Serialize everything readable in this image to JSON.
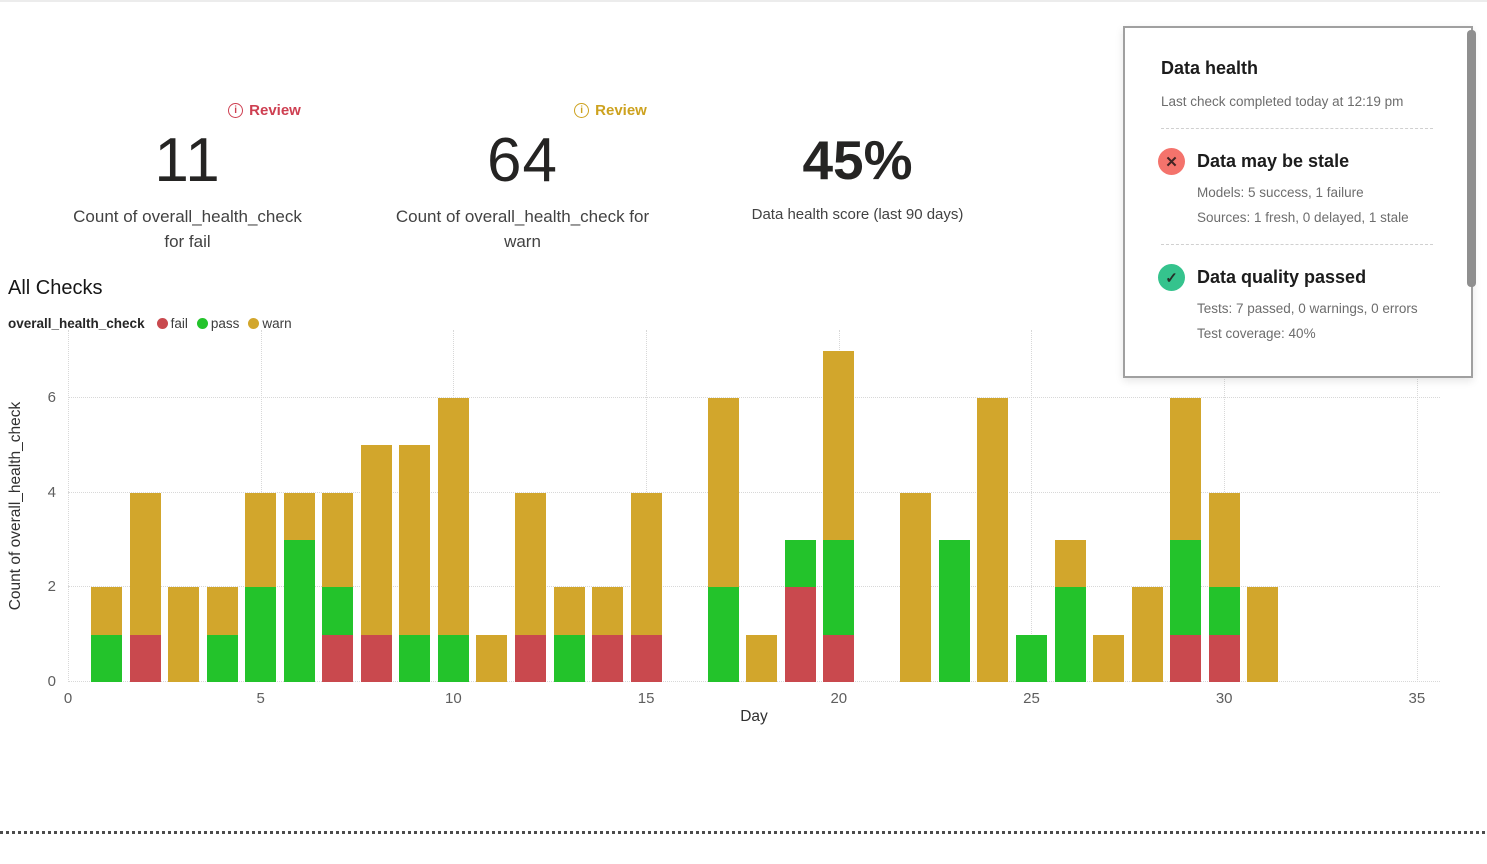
{
  "metrics": [
    {
      "badge": {
        "label": "Review",
        "color": "#ce3f51"
      },
      "value": "11",
      "label": "Count of overall_health_check for fail"
    },
    {
      "badge": {
        "label": "Review",
        "color": "#cda21f"
      },
      "value": "64",
      "label": "Count of overall_health_check for warn"
    },
    {
      "value": "45%",
      "label": "Data health score (last 90 days)"
    }
  ],
  "chart_data": {
    "type": "bar",
    "stacked": true,
    "title": "All Checks",
    "legend_title": "overall_health_check",
    "xlabel": "Day",
    "ylabel": "Count of overall_health_check",
    "x": [
      1,
      2,
      3,
      4,
      5,
      6,
      7,
      8,
      9,
      10,
      11,
      12,
      13,
      14,
      15,
      16,
      17,
      18,
      19,
      20,
      21,
      22,
      23,
      24,
      25,
      26,
      27,
      28,
      29,
      30,
      31
    ],
    "series": [
      {
        "name": "fail",
        "color": "#c9494e",
        "values": [
          0,
          1,
          0,
          0,
          0,
          0,
          1,
          1,
          0,
          0,
          0,
          1,
          0,
          1,
          1,
          0,
          0,
          0,
          2,
          1,
          0,
          0,
          0,
          0,
          0,
          0,
          0,
          0,
          1,
          1,
          0
        ]
      },
      {
        "name": "pass",
        "color": "#23c32b",
        "values": [
          1,
          0,
          0,
          1,
          2,
          3,
          1,
          0,
          1,
          1,
          0,
          0,
          1,
          0,
          0,
          0,
          2,
          0,
          1,
          2,
          0,
          0,
          3,
          0,
          1,
          2,
          0,
          0,
          2,
          1,
          0
        ]
      },
      {
        "name": "warn",
        "color": "#d2a62c",
        "values": [
          1,
          3,
          2,
          1,
          2,
          1,
          2,
          4,
          4,
          5,
          1,
          3,
          1,
          1,
          3,
          0,
          4,
          1,
          0,
          4,
          0,
          4,
          0,
          6,
          0,
          1,
          1,
          2,
          3,
          2,
          2
        ]
      }
    ],
    "xlim": [
      0,
      35.6
    ],
    "ylim": [
      0,
      7.44
    ],
    "xticks": [
      0,
      5,
      10,
      15,
      20,
      25,
      30,
      35
    ],
    "yticks": [
      0,
      2,
      4,
      6
    ],
    "grid": "dotted",
    "legend_position": "top-left"
  },
  "panel": {
    "title": "Data health",
    "subtitle": "Last check completed today at 12:19 pm",
    "items": [
      {
        "status": "fail",
        "icon_color": "#f4736c",
        "icon_glyph": "✕",
        "title": "Data may be stale",
        "lines": [
          "Models: 5 success, 1 failure",
          "Sources: 1 fresh, 0 delayed, 1 stale"
        ]
      },
      {
        "status": "pass",
        "icon_color": "#35c38d",
        "icon_glyph": "✓",
        "title": "Data quality passed",
        "lines": [
          "Tests: 7 passed, 0 warnings, 0 errors",
          "Test coverage: 40%"
        ]
      }
    ]
  }
}
